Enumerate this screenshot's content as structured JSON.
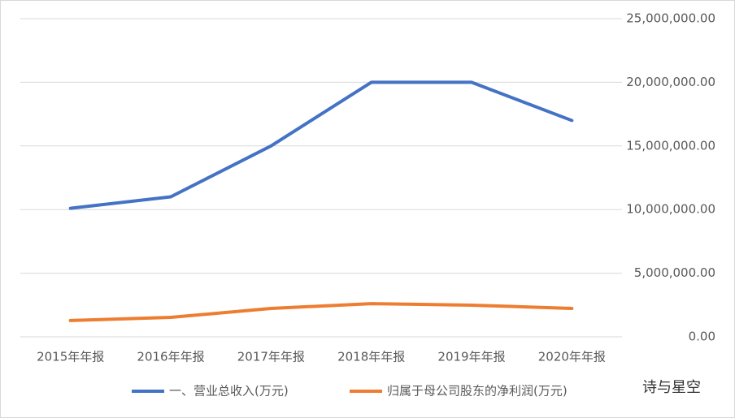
{
  "chart_data": {
    "type": "line",
    "categories": [
      "2015年年报",
      "2016年年报",
      "2017年年报",
      "2018年年报",
      "2019年年报",
      "2020年年报"
    ],
    "series": [
      {
        "name": "一、营业总收入(万元)",
        "color": "#4472c4",
        "values": [
          10100000,
          11000000,
          15000000,
          20000000,
          20000000,
          17000000
        ]
      },
      {
        "name": "归属于母公司股东的净利润(万元)",
        "color": "#ed7d31",
        "values": [
          1280000,
          1530000,
          2230000,
          2610000,
          2490000,
          2230000
        ]
      }
    ],
    "ylim": [
      0,
      25000000
    ],
    "yticks": [
      {
        "value": 0,
        "label": "0.00"
      },
      {
        "value": 5000000,
        "label": "5,000,000.00"
      },
      {
        "value": 10000000,
        "label": "10,000,000.00"
      },
      {
        "value": 15000000,
        "label": "15,000,000.00"
      },
      {
        "value": 20000000,
        "label": "20,000,000.00"
      },
      {
        "value": 25000000,
        "label": "25,000,000.00"
      }
    ],
    "grid": true,
    "legend": "bottom",
    "watermark": "诗与星空"
  }
}
